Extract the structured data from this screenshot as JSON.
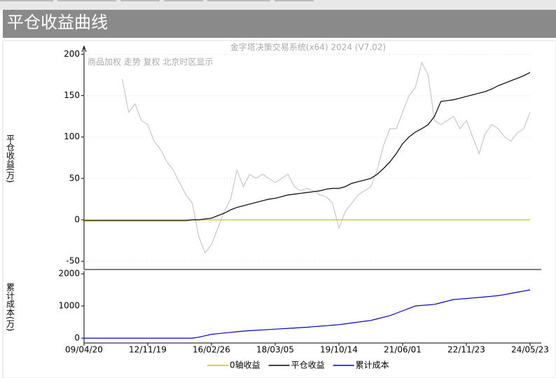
{
  "header": {
    "title": "平仓收益曲线"
  },
  "chart_data": [
    {
      "type": "line",
      "title": "金字塔决策交易系统(x64) 2024 (V7.02)",
      "subtitle": "商品加权 走势 复权 北京时区显示",
      "ylabel": "平仓收益(万)",
      "ylim": [
        -60,
        208
      ],
      "yticks": [
        -50,
        0,
        50,
        100,
        150,
        200
      ],
      "grid": true,
      "series": [
        {
          "color": "#c8c8c8",
          "values": [
            null,
            null,
            null,
            null,
            null,
            null,
            170,
            130,
            140,
            120,
            115,
            95,
            85,
            70,
            60,
            45,
            30,
            20,
            -20,
            -40,
            -30,
            -10,
            10,
            25,
            60,
            40,
            55,
            50,
            55,
            50,
            45,
            50,
            55,
            40,
            35,
            38,
            35,
            30,
            28,
            20,
            -10,
            10,
            20,
            30,
            35,
            40,
            60,
            90,
            110,
            110,
            130,
            150,
            160,
            190,
            175,
            120,
            115,
            120,
            125,
            110,
            120,
            100,
            80,
            105,
            115,
            110,
            100,
            95,
            105,
            110,
            130
          ]
        },
        {
          "name": "0轴收益",
          "color": "#c8c800",
          "values": [
            0,
            0,
            0,
            0,
            0,
            0,
            0,
            0,
            0,
            0,
            0,
            0,
            0,
            0,
            0,
            0,
            0,
            0,
            0,
            0,
            0,
            0,
            0,
            0,
            0,
            0,
            0,
            0,
            0,
            0,
            0,
            0,
            0,
            0,
            0,
            0,
            0,
            0,
            0,
            0,
            0,
            0,
            0,
            0,
            0,
            0,
            0,
            0,
            0,
            0,
            0,
            0,
            0,
            0,
            0,
            0,
            0,
            0,
            0,
            0,
            0,
            0,
            0,
            0,
            0,
            0,
            0,
            0,
            0,
            0,
            0
          ]
        },
        {
          "name": "平仓收益",
          "color": "#000000",
          "values": [
            -1,
            -1,
            -1,
            -1,
            -1,
            -1,
            -1,
            -1,
            -1,
            -1,
            -1,
            -1,
            -1,
            -1,
            -1,
            -1,
            -1,
            0,
            0,
            1,
            2,
            5,
            8,
            12,
            15,
            17,
            19,
            21,
            23,
            25,
            26,
            28,
            30,
            31,
            32,
            33,
            34,
            35,
            37,
            38,
            38,
            40,
            44,
            46,
            48,
            50,
            55,
            62,
            70,
            80,
            92,
            100,
            106,
            110,
            115,
            125,
            143,
            144,
            145,
            147,
            149,
            151,
            153,
            155,
            158,
            162,
            165,
            168,
            171,
            174,
            178
          ]
        }
      ]
    },
    {
      "type": "line",
      "ylabel": "累计成本(万)",
      "ylim": [
        -150,
        2090
      ],
      "yticks": [
        0,
        1000,
        2000
      ],
      "categories": [
        "09/04/20",
        null,
        null,
        null,
        null,
        null,
        null,
        null,
        null,
        null,
        "12/11/19",
        null,
        null,
        null,
        null,
        null,
        null,
        null,
        null,
        null,
        "16/02/26",
        null,
        null,
        null,
        null,
        null,
        null,
        null,
        null,
        null,
        "18/03/05",
        null,
        null,
        null,
        null,
        null,
        null,
        null,
        null,
        null,
        "19/10/14",
        null,
        null,
        null,
        null,
        null,
        null,
        null,
        null,
        null,
        "21/06/01",
        null,
        null,
        null,
        null,
        null,
        null,
        null,
        null,
        null,
        "22/11/23",
        null,
        null,
        null,
        null,
        null,
        null,
        null,
        null,
        null,
        "24/05/23"
      ],
      "series": [
        {
          "name": "累计成本",
          "color": "#0000c8",
          "values": [
            0,
            0,
            0,
            0,
            0,
            0,
            0,
            0,
            0,
            0,
            0,
            0,
            0,
            0,
            0,
            0,
            0,
            0,
            30,
            75,
            120,
            140,
            160,
            180,
            200,
            220,
            232,
            244,
            256,
            268,
            280,
            292,
            304,
            316,
            328,
            340,
            356,
            372,
            388,
            404,
            420,
            446,
            472,
            498,
            524,
            550,
            600,
            650,
            700,
            775,
            850,
            925,
            1000,
            1017,
            1034,
            1050,
            1100,
            1150,
            1200,
            1215,
            1230,
            1248,
            1266,
            1284,
            1302,
            1320,
            1356,
            1392,
            1428,
            1464,
            1500
          ]
        }
      ]
    }
  ]
}
